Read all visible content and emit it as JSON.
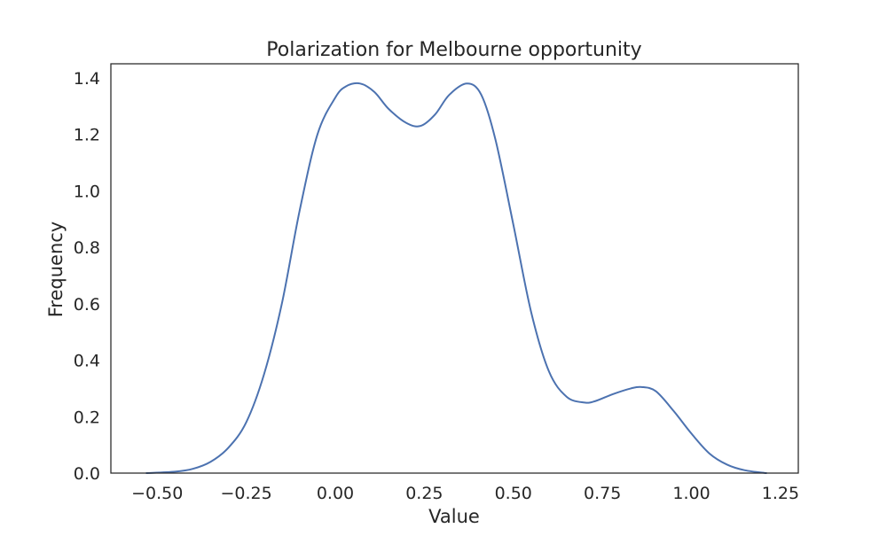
{
  "chart_data": {
    "type": "line",
    "title": "Polarization for Melbourne opportunity",
    "xlabel": "Value",
    "ylabel": "Frequency",
    "xlim": [
      -0.63,
      1.3
    ],
    "ylim": [
      0,
      1.45
    ],
    "x_ticks": [
      -0.5,
      -0.25,
      0.0,
      0.25,
      0.5,
      0.75,
      1.0,
      1.25
    ],
    "x_tick_labels": [
      "−0.50",
      "−0.25",
      "0.00",
      "0.25",
      "0.50",
      "0.75",
      "1.00",
      "1.25"
    ],
    "y_ticks": [
      0.0,
      0.2,
      0.4,
      0.6,
      0.8,
      1.0,
      1.2,
      1.4
    ],
    "y_tick_labels": [
      "0.0",
      "0.2",
      "0.4",
      "0.6",
      "0.8",
      "1.0",
      "1.2",
      "1.4"
    ],
    "grid": false,
    "series": [
      {
        "color": "#4c72b0",
        "x": [
          -0.53,
          -0.45,
          -0.4,
          -0.35,
          -0.3,
          -0.25,
          -0.2,
          -0.15,
          -0.1,
          -0.05,
          0.0,
          0.03,
          0.07,
          0.11,
          0.15,
          0.2,
          0.24,
          0.28,
          0.32,
          0.37,
          0.41,
          0.45,
          0.5,
          0.55,
          0.6,
          0.65,
          0.7,
          0.73,
          0.78,
          0.83,
          0.86,
          0.9,
          0.95,
          1.0,
          1.05,
          1.1,
          1.15,
          1.21
        ],
        "y": [
          0.0,
          0.005,
          0.015,
          0.04,
          0.09,
          0.18,
          0.35,
          0.6,
          0.93,
          1.2,
          1.33,
          1.37,
          1.38,
          1.35,
          1.29,
          1.24,
          1.23,
          1.27,
          1.34,
          1.38,
          1.34,
          1.18,
          0.88,
          0.57,
          0.36,
          0.27,
          0.25,
          0.255,
          0.28,
          0.3,
          0.305,
          0.29,
          0.22,
          0.14,
          0.07,
          0.03,
          0.01,
          0.0
        ]
      }
    ]
  }
}
